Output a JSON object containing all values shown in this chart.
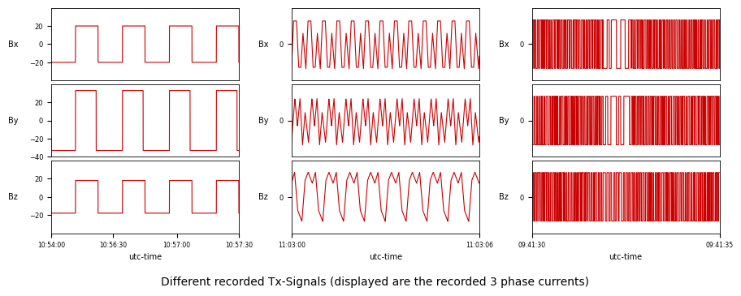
{
  "title": "Different recorded Tx-Signals (displayed are the recorded 3 phase currents)",
  "line_color": "#cc0000",
  "bg_color": "#ffffff",
  "col1_xticks": [
    "10:54:00",
    "10:56:30",
    "10:57:00",
    "10:57:30"
  ],
  "col2_xticks": [
    "11:03:00",
    "11:03:06"
  ],
  "col3_xticks": [
    "09:41:30",
    "09:41:35"
  ],
  "col1_yticks_bx": [
    20,
    0,
    -20
  ],
  "col1_yticks_by": [
    20,
    0,
    -20,
    -40
  ],
  "col1_yticks_bz": [
    20,
    0,
    -20
  ],
  "col1_ylim": [
    -40,
    40
  ],
  "col2_ylim": [
    -60,
    60
  ],
  "col3_ylim": [
    -60,
    60
  ],
  "col1_amplitude_bx": 20,
  "col1_amplitude_by": 33,
  "col1_amplitude_bz": 18,
  "col2_amplitude": 45,
  "col3_amplitude": 40
}
